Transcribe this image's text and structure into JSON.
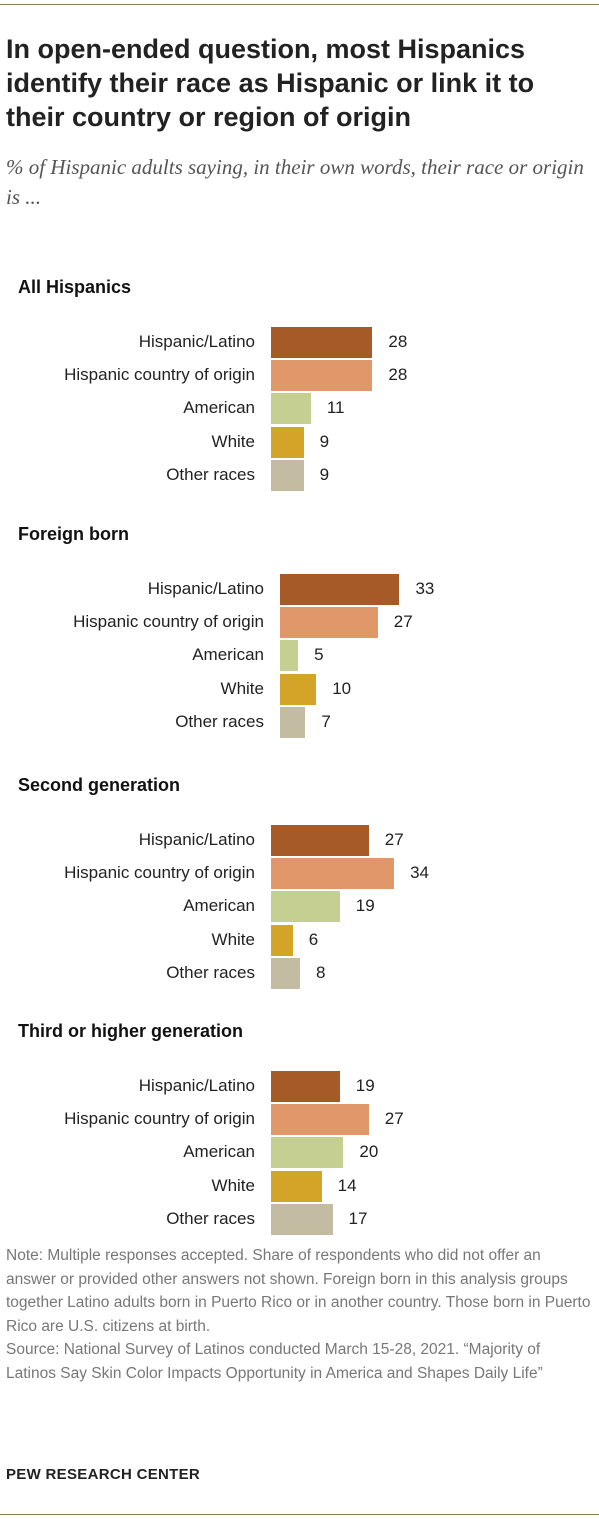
{
  "title": "In open-ended question, most Hispanics identify their race as Hispanic or link it to their country or region of origin",
  "subtitle": "% of Hispanic adults saying, in their own words, their race or origin is ...",
  "chart_data": {
    "type": "bar",
    "orientation": "horizontal",
    "categories": [
      "Hispanic/Latino",
      "Hispanic country of origin",
      "American",
      "White",
      "Other races"
    ],
    "colors": [
      "#a55a28",
      "#e0986a",
      "#c4cf91",
      "#d4a429",
      "#c3bba2"
    ],
    "panels": [
      {
        "title": "All Hispanics",
        "values": [
          28,
          28,
          11,
          9,
          9
        ]
      },
      {
        "title": "Foreign born",
        "values": [
          33,
          27,
          5,
          10,
          7
        ]
      },
      {
        "title": "Second generation",
        "values": [
          27,
          34,
          19,
          6,
          8
        ]
      },
      {
        "title": "Third or higher generation",
        "values": [
          19,
          27,
          20,
          14,
          17
        ]
      }
    ]
  },
  "note": "Note: Multiple responses accepted. Share of respondents who did not offer an answer or provided other answers not shown. Foreign born in this analysis groups together Latino adults born in Puerto Rico or in another country. Those born in Puerto Rico are U.S. citizens at birth.",
  "source": "Source: National Survey of Latinos conducted March 15-28, 2021. “Majority of Latinos Say Skin Color Impacts Opportunity in America and Shapes Daily Life”",
  "footer": "PEW RESEARCH CENTER"
}
